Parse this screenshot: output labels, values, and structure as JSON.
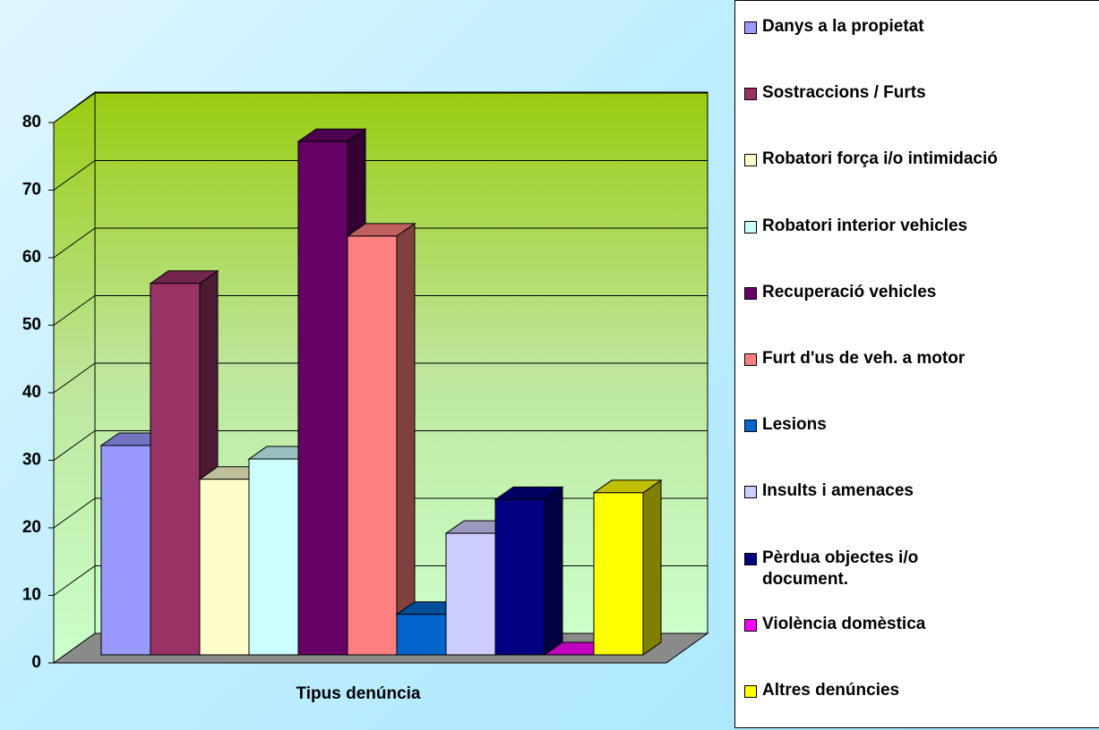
{
  "chart_data": {
    "type": "bar3d",
    "xlabel": "Tipus denúncia",
    "ylim": [
      0,
      80
    ],
    "yticks": [
      0,
      10,
      20,
      30,
      40,
      50,
      60,
      70,
      80
    ],
    "grid": true,
    "legend": "right",
    "series": [
      {
        "name": "Danys a la propietat",
        "color": "#9999ff",
        "values": [
          31
        ]
      },
      {
        "name": "Sostraccions / Furts",
        "color": "#993366",
        "values": [
          55
        ]
      },
      {
        "name": "Robatori força i/o intimidació",
        "color": "#ffffcc",
        "values": [
          26
        ]
      },
      {
        "name": "Robatori interior vehicles",
        "color": "#ccffff",
        "values": [
          29
        ]
      },
      {
        "name": "Recuperació vehicles",
        "color": "#660066",
        "values": [
          76
        ]
      },
      {
        "name": "Furt d'us de veh. a motor",
        "color": "#ff8080",
        "values": [
          62
        ]
      },
      {
        "name": "Lesions",
        "color": "#0066cc",
        "values": [
          6
        ]
      },
      {
        "name": "Insults i amenaces",
        "color": "#ccccff",
        "values": [
          18
        ]
      },
      {
        "name": "Pèrdua objectes i/o document.",
        "color": "#000080",
        "values": [
          23
        ]
      },
      {
        "name": "Violència domèstica",
        "color": "#ff00ff",
        "values": [
          0
        ]
      },
      {
        "name": "Altres denúncies",
        "color": "#ffff00",
        "values": [
          24
        ]
      }
    ]
  }
}
